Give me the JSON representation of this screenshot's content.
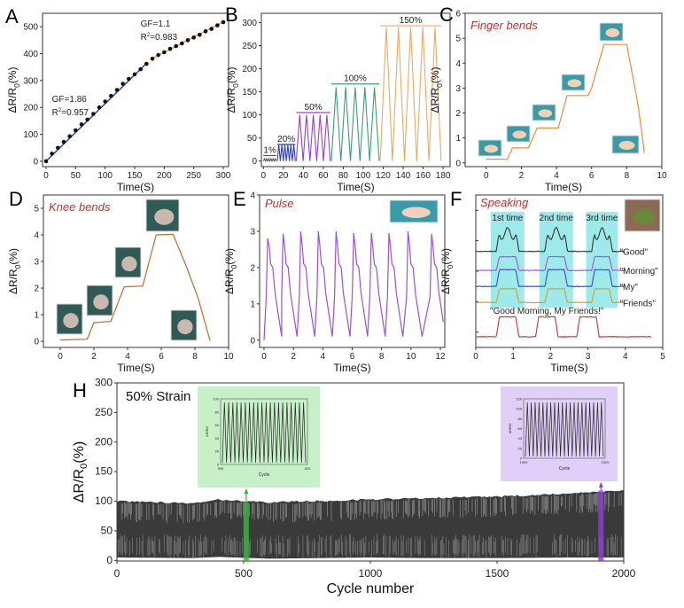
{
  "figure": {
    "panel_letters": [
      "A",
      "B",
      "C",
      "D",
      "E",
      "F",
      "H"
    ]
  },
  "chart_data": [
    {
      "panel": "A",
      "type": "scatter",
      "xlabel": "Time(S)",
      "ylabel_main": "ΔR/R",
      "ylabel_sub": "0",
      "ylabel_suffix": "(%)",
      "xlim": [
        -6,
        309
      ],
      "ylim": [
        -20,
        550
      ],
      "xticks": [
        0,
        50,
        100,
        150,
        200,
        250,
        300
      ],
      "yticks": [
        0,
        100,
        200,
        300,
        400,
        500
      ],
      "series": [
        {
          "color": "#2a3fc0",
          "x": [
            0,
            10,
            20,
            30,
            40,
            50,
            60,
            70,
            80,
            90,
            100,
            110,
            120,
            130,
            140,
            150,
            160,
            170
          ],
          "y": [
            0,
            28,
            50,
            72,
            93,
            115,
            137,
            155,
            176,
            200,
            222,
            243,
            265,
            288,
            306,
            323,
            342,
            362
          ],
          "fit": [
            [
              0,
              0
            ],
            [
              170,
              364
            ]
          ]
        },
        {
          "color": "#f0a050",
          "x": [
            180,
            190,
            200,
            210,
            220,
            230,
            240,
            250,
            260,
            270,
            280,
            290,
            300
          ],
          "y": [
            381,
            395,
            405,
            418,
            428,
            438,
            450,
            460,
            470,
            483,
            492,
            505,
            517
          ],
          "fit": [
            [
              178,
              380
            ],
            [
              300,
              518
            ]
          ]
        }
      ],
      "annotations": [
        {
          "text": "GF=1.86",
          "r2_label": "R",
          "r2_sup": "2",
          "r2_value": "=0.957",
          "at": [
            10,
            220
          ]
        },
        {
          "text": "GF=1.1",
          "r2_label": "R",
          "r2_sup": "2",
          "r2_value": "=0.983",
          "at": [
            160,
            500
          ]
        }
      ]
    },
    {
      "panel": "B",
      "type": "line",
      "xlabel": "Time(S)",
      "ylabel_main": "ΔR/R",
      "ylabel_sub": "0",
      "ylabel_suffix": "(%)",
      "xlim": [
        -2,
        187
      ],
      "ylim": [
        -12,
        320
      ],
      "xticks": [
        0,
        20,
        40,
        60,
        80,
        100,
        120,
        140,
        160,
        180
      ],
      "yticks": [
        0,
        50,
        100,
        150,
        200,
        250,
        300
      ],
      "series": [
        {
          "name": "1%",
          "color": "#555555",
          "start": 0,
          "end": 13,
          "cycles": 6,
          "peak": 5,
          "label_y": 12
        },
        {
          "name": "20%",
          "color": "#2a3fc0",
          "start": 14,
          "end": 32,
          "cycles": 6,
          "peak": 35,
          "label_y": 36
        },
        {
          "name": "50%",
          "color": "#9a3fd0",
          "start": 33,
          "end": 67,
          "cycles": 5,
          "peak": 100,
          "label_y": 105
        },
        {
          "name": "100%",
          "color": "#3aa070",
          "start": 68,
          "end": 116,
          "cycles": 5,
          "peak": 160,
          "label_y": 167
        },
        {
          "name": "150%",
          "color": "#f0a860",
          "start": 117,
          "end": 178,
          "cycles": 5,
          "peak": 290,
          "label_y": 293
        }
      ]
    },
    {
      "panel": "C",
      "type": "line",
      "title": "Finger bends",
      "xlabel": "Time(S)",
      "ylabel_main": "ΔR/R",
      "ylabel_sub": "0",
      "ylabel_suffix": "(%)",
      "xlim": [
        -1.2,
        10
      ],
      "ylim": [
        -0.15,
        6
      ],
      "xticks": [
        0,
        2,
        4,
        6,
        8,
        10
      ],
      "yticks": [
        0,
        1,
        2,
        3,
        4,
        5,
        6
      ],
      "color": "#f08a40",
      "x": [
        0,
        1.2,
        1.5,
        2.4,
        2.9,
        4.1,
        4.6,
        5.8,
        6.0,
        6.2,
        6.7,
        8.0,
        8.2,
        8.6,
        8.9,
        9.0
      ],
      "y": [
        0.15,
        0.15,
        0.6,
        0.6,
        1.4,
        1.4,
        2.7,
        2.7,
        3.0,
        3.5,
        4.75,
        4.75,
        4.0,
        2.5,
        1.0,
        0.4
      ]
    },
    {
      "panel": "D",
      "type": "line",
      "title": "Knee bends",
      "xlabel": "Time(S)",
      "ylabel_main": "ΔR/R",
      "ylabel_sub": "0",
      "ylabel_suffix": "(%)",
      "xlim": [
        -1,
        10
      ],
      "ylim": [
        -0.23,
        5.5
      ],
      "xticks": [
        0,
        2,
        4,
        6,
        8,
        10
      ],
      "yticks": [
        0,
        1,
        2,
        3,
        4,
        5
      ],
      "color": "#c06a30",
      "x": [
        0,
        1.6,
        2.0,
        3.0,
        3.8,
        4.9,
        5.7,
        6.7,
        7.5,
        8.2,
        8.9
      ],
      "y": [
        0.05,
        0.08,
        0.7,
        0.75,
        2.05,
        2.08,
        4.0,
        4.02,
        2.8,
        1.6,
        0.02
      ]
    },
    {
      "panel": "E",
      "type": "line",
      "title": "Pulse",
      "xlabel": "Time(S)",
      "ylabel_main": "ΔR/R",
      "ylabel_sub": "0",
      "ylabel_suffix": "(%)",
      "xlim": [
        -0.3,
        12.3
      ],
      "ylim": [
        -0.2,
        4
      ],
      "xticks": [
        0,
        2,
        4,
        6,
        8,
        10,
        12
      ],
      "yticks": [
        0,
        1,
        2,
        3,
        4
      ],
      "color": "#9a50e0",
      "peak_times": [
        0.25,
        1.3,
        2.5,
        3.7,
        4.9,
        6.1,
        7.3,
        8.5,
        9.8,
        11.4
      ],
      "peak_values": [
        2.8,
        2.93,
        3.0,
        3.0,
        3.0,
        2.95,
        2.95,
        2.95,
        3.0,
        2.93
      ],
      "trough": 0.1
    },
    {
      "panel": "F",
      "type": "line",
      "title": "Speaking",
      "xlabel": "Time(S)",
      "ylabel_main": "ΔR/R",
      "ylabel_sub": "0",
      "ylabel_suffix": "(%)",
      "xlim": [
        0,
        5
      ],
      "xticks": [
        0,
        1,
        2,
        3,
        4,
        5
      ],
      "windows": [
        {
          "label": "1st time",
          "start": 0.4,
          "end": 1.3
        },
        {
          "label": "2nd time",
          "start": 1.7,
          "end": 2.6
        },
        {
          "label": "3rd time",
          "start": 2.95,
          "end": 3.8
        }
      ],
      "window_color": "#9eeaea",
      "series": [
        {
          "name": "\"Good\"",
          "color": "#333333"
        },
        {
          "name": "\"Morning\"",
          "color": "#a050e0"
        },
        {
          "name": "\"My\"",
          "color": "#3050c0"
        },
        {
          "name": "\"Friends\"",
          "color": "#d0a020"
        },
        {
          "name": "\"Good Morning, My Friends!\"",
          "color": "#d03030"
        }
      ]
    },
    {
      "panel": "H",
      "type": "line",
      "title": "50% Strain",
      "xlabel": "Cycle number",
      "ylabel_main": "ΔR/R",
      "ylabel_sub": "0",
      "ylabel_suffix": "(%)",
      "xlim": [
        0,
        2000
      ],
      "ylim": [
        -1,
        300
      ],
      "xticks": [
        0,
        500,
        1000,
        1500,
        2000
      ],
      "yticks": [
        0,
        50,
        100,
        150,
        200,
        250,
        300
      ],
      "envelope_x": [
        0,
        300,
        400,
        600,
        1000,
        1200,
        1500,
        1800,
        2000
      ],
      "envelope_max": [
        100,
        97,
        103,
        98,
        103,
        105,
        108,
        113,
        118
      ],
      "envelope_min": [
        5,
        4,
        6,
        3,
        5,
        4,
        4,
        5,
        5
      ],
      "insets": [
        {
          "cycle_range": [
            "500",
            "520"
          ],
          "yticks": [
            "0",
            "20",
            "40",
            "60",
            "80",
            "100"
          ],
          "xlabel": "Cycle",
          "ylabel": "ΔR/R0",
          "color": "#c8f0c8",
          "marker_color": "#3ab040",
          "marker_cycle": 510
        },
        {
          "cycle_range": [
            "1900",
            "1920"
          ],
          "yticks": [
            "0",
            "20",
            "40",
            "60",
            "80",
            "100",
            "120"
          ],
          "xlabel": "Cycle",
          "ylabel": "ΔR/R0",
          "color": "#e0d0f8",
          "marker_color": "#8a40d0",
          "marker_cycle": 1910
        }
      ]
    }
  ]
}
